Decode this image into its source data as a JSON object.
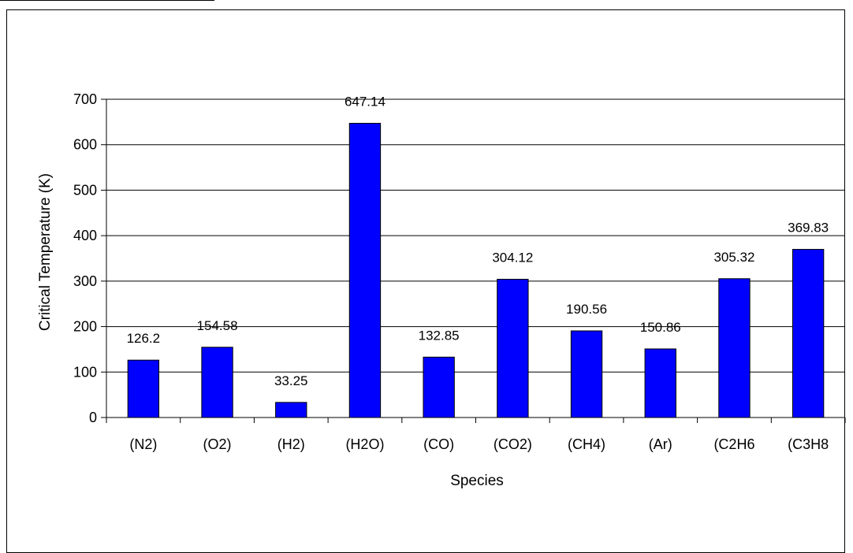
{
  "chart_data": {
    "type": "bar",
    "title": "",
    "xlabel": "Species",
    "ylabel": "Critical Temperature (K)",
    "categories": [
      "(N2)",
      "(O2)",
      "(H2)",
      "(H2O)",
      "(CO)",
      "(CO2)",
      "(CH4)",
      "(Ar)",
      "(C2H6",
      "(C3H8"
    ],
    "values": [
      126.2,
      154.58,
      33.25,
      647.14,
      132.85,
      304.12,
      190.56,
      150.86,
      305.32,
      369.83
    ],
    "data_labels": [
      "126.2",
      "154.58",
      "33.25",
      "647.14",
      "132.85",
      "304.12",
      "190.56",
      "150.86",
      "305.32",
      "369.83"
    ],
    "ylim": [
      0,
      700
    ],
    "yticks": [
      0,
      100,
      200,
      300,
      400,
      500,
      600,
      700
    ],
    "grid": true,
    "legend": "none",
    "bar_color": "#0000FF",
    "bar_edge_color": "#000000",
    "grid_color": "#000000"
  }
}
